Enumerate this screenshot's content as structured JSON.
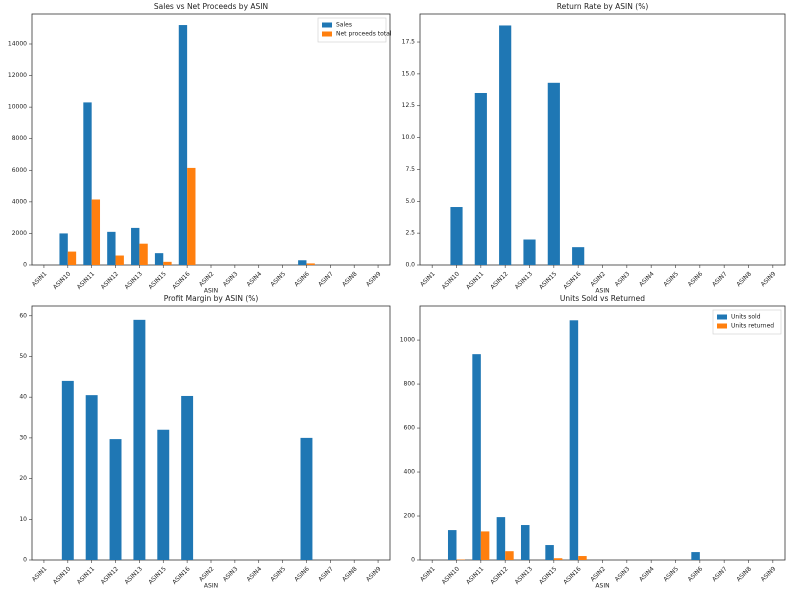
{
  "chart_data": [
    {
      "type": "bar",
      "title": "Sales vs Net Proceeds by ASIN",
      "xlabel": "ASIN",
      "categories": [
        "ASIN1",
        "ASIN10",
        "ASIN11",
        "ASIN12",
        "ASIN13",
        "ASIN15",
        "ASIN16",
        "ASIN2",
        "ASIN3",
        "ASIN4",
        "ASIN5",
        "ASIN6",
        "ASIN7",
        "ASIN8",
        "ASIN9"
      ],
      "series": [
        {
          "name": "Sales",
          "color": "#1f77b4",
          "values": [
            0,
            2000,
            10300,
            2100,
            2350,
            750,
            15200,
            0,
            0,
            0,
            0,
            300,
            0,
            0,
            0
          ]
        },
        {
          "name": "Net proceeds total",
          "color": "#ff7f0e",
          "values": [
            0,
            850,
            4150,
            600,
            1350,
            200,
            6150,
            0,
            0,
            0,
            0,
            100,
            0,
            0,
            0
          ]
        }
      ],
      "ylim": [
        0,
        15900
      ],
      "yticks": [
        0,
        2000,
        4000,
        6000,
        8000,
        10000,
        12000,
        14000
      ],
      "legend": "upper right"
    },
    {
      "type": "bar",
      "title": "Return Rate by ASIN (%)",
      "xlabel": "ASIN",
      "categories": [
        "ASIN1",
        "ASIN10",
        "ASIN11",
        "ASIN12",
        "ASIN13",
        "ASIN15",
        "ASIN16",
        "ASIN2",
        "ASIN3",
        "ASIN4",
        "ASIN5",
        "ASIN6",
        "ASIN7",
        "ASIN8",
        "ASIN9"
      ],
      "values": [
        0,
        4.55,
        13.5,
        18.8,
        2.0,
        14.3,
        1.4,
        0,
        0,
        0,
        0,
        0,
        0,
        0,
        0
      ],
      "color": "#1f77b4",
      "ylim": [
        0,
        19.7
      ],
      "yticks": [
        {
          "value": 0,
          "label": "0.0"
        },
        2.5,
        {
          "value": 5,
          "label": "5.0"
        },
        7.5,
        {
          "value": 10,
          "label": "10.0"
        },
        12.5,
        {
          "value": 15,
          "label": "15.0"
        },
        17.5
      ]
    },
    {
      "type": "bar",
      "title": "Profit Margin by ASIN (%)",
      "xlabel": "ASIN",
      "categories": [
        "ASIN1",
        "ASIN10",
        "ASIN11",
        "ASIN12",
        "ASIN13",
        "ASIN15",
        "ASIN16",
        "ASIN2",
        "ASIN3",
        "ASIN4",
        "ASIN5",
        "ASIN6",
        "ASIN7",
        "ASIN8",
        "ASIN9"
      ],
      "values": [
        0,
        44,
        40.5,
        29.7,
        59,
        32,
        40.3,
        0,
        0,
        0,
        0,
        30,
        0,
        0,
        0
      ],
      "color": "#1f77b4",
      "ylim": [
        0,
        62.4
      ],
      "yticks": [
        0,
        10,
        20,
        30,
        40,
        50,
        60
      ]
    },
    {
      "type": "bar",
      "title": "Units Sold vs Returned",
      "xlabel": "ASIN",
      "categories": [
        "ASIN1",
        "ASIN10",
        "ASIN11",
        "ASIN12",
        "ASIN13",
        "ASIN15",
        "ASIN16",
        "ASIN2",
        "ASIN3",
        "ASIN4",
        "ASIN5",
        "ASIN6",
        "ASIN7",
        "ASIN8",
        "ASIN9"
      ],
      "series": [
        {
          "name": "Units sold",
          "color": "#1f77b4",
          "values": [
            0,
            136,
            936,
            195,
            159,
            68,
            1090,
            0,
            0,
            0,
            0,
            36,
            0,
            0,
            0
          ]
        },
        {
          "name": "Units returned",
          "color": "#ff7f0e",
          "values": [
            0,
            2,
            130,
            40,
            0,
            8,
            18,
            0,
            0,
            0,
            0,
            0,
            0,
            0,
            0
          ]
        }
      ],
      "ylim": [
        0,
        1155
      ],
      "yticks": [
        0,
        200,
        400,
        600,
        800,
        1000
      ],
      "legend": "upper right"
    }
  ]
}
